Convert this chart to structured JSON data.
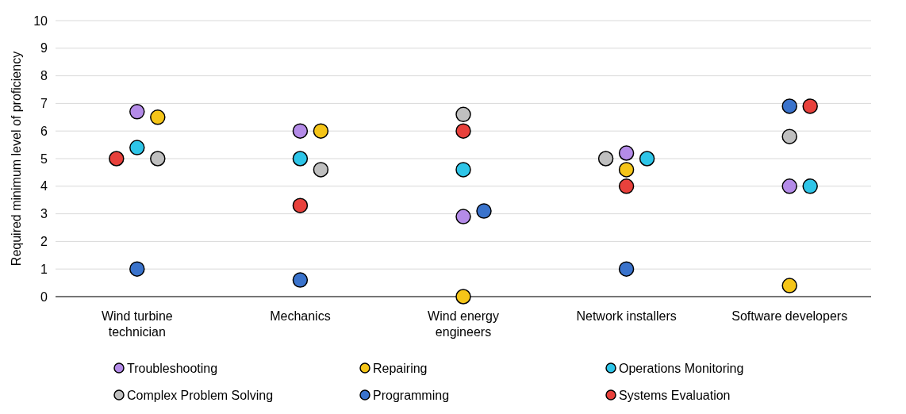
{
  "chart_data": {
    "type": "scatter",
    "ylabel": "Required minimum level of proficiency",
    "categories": [
      "Wind turbine technician",
      "Mechanics",
      "Wind energy engineers",
      "Network installers",
      "Software developers"
    ],
    "ylim": [
      0,
      10
    ],
    "yticks": [
      0,
      1,
      2,
      3,
      4,
      5,
      6,
      7,
      8,
      9,
      10
    ],
    "grid": "y",
    "legend": "bottom",
    "marker": "circle",
    "series": [
      {
        "name": "Troubleshooting",
        "color": "#b48be8",
        "values": [
          6.7,
          6,
          2.9,
          5.2,
          4
        ]
      },
      {
        "name": "Repairing",
        "color": "#f5c518",
        "values": [
          6.5,
          6,
          0,
          4.6,
          0.4
        ]
      },
      {
        "name": "Operations Monitoring",
        "color": "#2ec5e8",
        "values": [
          5.4,
          5,
          4.6,
          5,
          4
        ]
      },
      {
        "name": "Complex Problem Solving",
        "color": "#bfbfbf",
        "values": [
          5,
          4.6,
          6.6,
          5,
          5.8
        ]
      },
      {
        "name": "Programming",
        "color": "#3a73cc",
        "values": [
          1,
          0.6,
          3.1,
          1,
          6.9
        ]
      },
      {
        "name": "Systems Evaluation",
        "color": "#e8413c",
        "values": [
          5,
          3.3,
          6,
          4,
          6.9
        ]
      }
    ]
  }
}
